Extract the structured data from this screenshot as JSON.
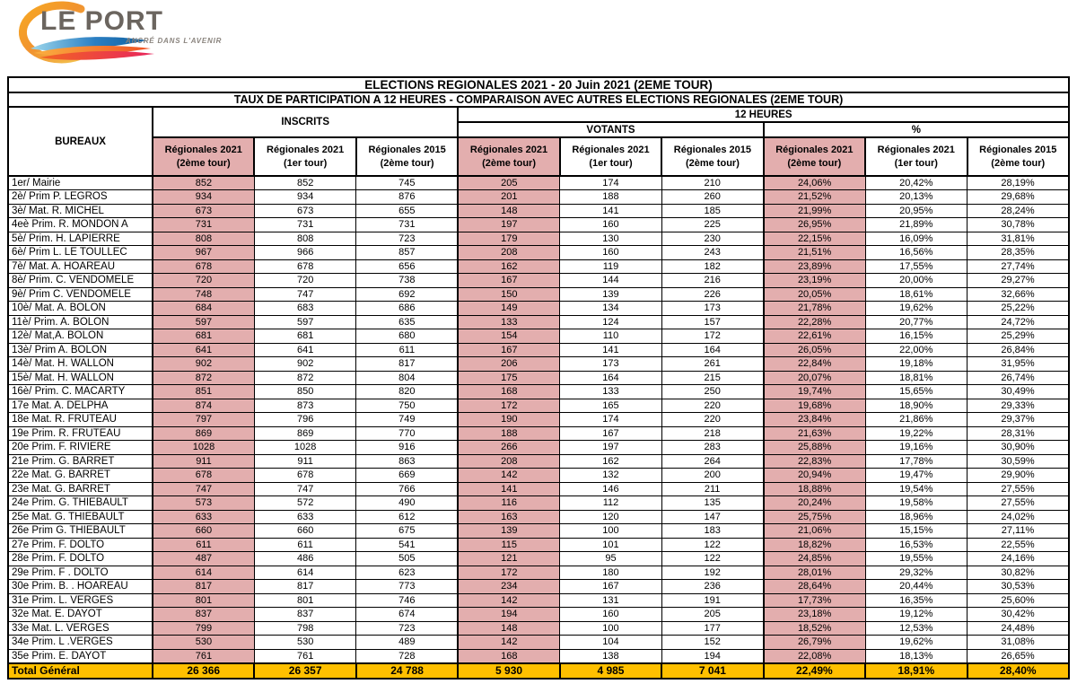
{
  "logo": {
    "name": "LE PORT",
    "tagline": "ANCRÉ DANS L'AVENIR",
    "colors": {
      "arc": "#f1a32f",
      "blue_wave": "#1b75bc",
      "pink_wave": "#e8255d",
      "orange_wave": "#f7941d",
      "text": "#6b655f"
    }
  },
  "table": {
    "title": "ELECTIONS REGIONALES 2021 - 20 Juin 2021 (2EME TOUR)",
    "subtitle": "TAUX DE PARTICIPATION A 12 HEURES - COMPARAISON AVEC AUTRES ELECTIONS REGIONALES  (2EME TOUR)",
    "corner_label": "BUREAUX",
    "groups": {
      "inscrits": "INSCRITS",
      "douze_heures": "12 HEURES",
      "votants": "VOTANTS",
      "pct": "%"
    },
    "colors": {
      "highlight_pink": "#e3aeae",
      "total_orange": "#ffc000"
    },
    "col_headers": [
      {
        "line1": "Régionales 2021",
        "line2": "(2ème tour)",
        "highlight": true
      },
      {
        "line1": "Régionales 2021",
        "line2": "(1er tour)",
        "highlight": false
      },
      {
        "line1": "Régionales 2015",
        "line2": "(2ème tour)",
        "highlight": false
      },
      {
        "line1": "Régionales 2021",
        "line2": "(2ème tour)",
        "highlight": true
      },
      {
        "line1": "Régionales 2021",
        "line2": "(1er tour)",
        "highlight": false
      },
      {
        "line1": "Régionales 2015",
        "line2": "(2ème tour)",
        "highlight": false
      },
      {
        "line1": "Régionales 2021",
        "line2": "(2ème tour)",
        "highlight": true
      },
      {
        "line1": "Régionales 2021",
        "line2": "(1er tour)",
        "highlight": false
      },
      {
        "line1": "Régionales 2015",
        "line2": "(2ème tour)",
        "highlight": false
      }
    ],
    "rows": [
      {
        "bureau": "1er/ Mairie",
        "values": [
          "852",
          "852",
          "745",
          "205",
          "174",
          "210",
          "24,06%",
          "20,42%",
          "28,19%"
        ]
      },
      {
        "bureau": "2è/ Prim P.  LEGROS",
        "values": [
          "934",
          "934",
          "876",
          "201",
          "188",
          "260",
          "21,52%",
          "20,13%",
          "29,68%"
        ]
      },
      {
        "bureau": "3è/ Mat. R. MICHEL",
        "values": [
          "673",
          "673",
          "655",
          "148",
          "141",
          "185",
          "21,99%",
          "20,95%",
          "28,24%"
        ]
      },
      {
        "bureau": "4eè Prim. R. MONDON A",
        "values": [
          "731",
          "731",
          "731",
          "197",
          "160",
          "225",
          "26,95%",
          "21,89%",
          "30,78%"
        ]
      },
      {
        "bureau": "5è/ Prim. H. LAPIERRE",
        "values": [
          "808",
          "808",
          "723",
          "179",
          "130",
          "230",
          "22,15%",
          "16,09%",
          "31,81%"
        ]
      },
      {
        "bureau": "6è/ Prim L. LE TOULLEC",
        "values": [
          "967",
          "966",
          "857",
          "208",
          "160",
          "243",
          "21,51%",
          "16,56%",
          "28,35%"
        ]
      },
      {
        "bureau": "7è/ Mat. A. HOAREAU",
        "values": [
          "678",
          "678",
          "656",
          "162",
          "119",
          "182",
          "23,89%",
          "17,55%",
          "27,74%"
        ]
      },
      {
        "bureau": "8è/ Prim. C. VENDOMELE",
        "values": [
          "720",
          "720",
          "738",
          "167",
          "144",
          "216",
          "23,19%",
          "20,00%",
          "29,27%"
        ]
      },
      {
        "bureau": "9è/ Prim C. VENDOMELE",
        "values": [
          "748",
          "747",
          "692",
          "150",
          "139",
          "226",
          "20,05%",
          "18,61%",
          "32,66%"
        ]
      },
      {
        "bureau": "10è/ Mat. A. BOLON",
        "values": [
          "684",
          "683",
          "686",
          "149",
          "134",
          "173",
          "21,78%",
          "19,62%",
          "25,22%"
        ]
      },
      {
        "bureau": "11è/ Prim. A. BOLON",
        "values": [
          "597",
          "597",
          "635",
          "133",
          "124",
          "157",
          "22,28%",
          "20,77%",
          "24,72%"
        ]
      },
      {
        "bureau": "12è/ Mat,A. BOLON",
        "values": [
          "681",
          "681",
          "680",
          "154",
          "110",
          "172",
          "22,61%",
          "16,15%",
          "25,29%"
        ]
      },
      {
        "bureau": "13è/ Prim A. BOLON",
        "values": [
          "641",
          "641",
          "611",
          "167",
          "141",
          "164",
          "26,05%",
          "22,00%",
          "26,84%"
        ]
      },
      {
        "bureau": "14è/ Mat. H. WALLON",
        "values": [
          "902",
          "902",
          "817",
          "206",
          "173",
          "261",
          "22,84%",
          "19,18%",
          "31,95%"
        ]
      },
      {
        "bureau": "15è/ Mat. H. WALLON",
        "values": [
          "872",
          "872",
          "804",
          "175",
          "164",
          "215",
          "20,07%",
          "18,81%",
          "26,74%"
        ]
      },
      {
        "bureau": "16è/ Prim. C. MACARTY",
        "values": [
          "851",
          "850",
          "820",
          "168",
          "133",
          "250",
          "19,74%",
          "15,65%",
          "30,49%"
        ]
      },
      {
        "bureau": "17e Mat.  A.  DELPHA",
        "values": [
          "874",
          "873",
          "750",
          "172",
          "165",
          "220",
          "19,68%",
          "18,90%",
          "29,33%"
        ]
      },
      {
        "bureau": "18e Mat.  R.  FRUTEAU",
        "values": [
          "797",
          "796",
          "749",
          "190",
          "174",
          "220",
          "23,84%",
          "21,86%",
          "29,37%"
        ]
      },
      {
        "bureau": "19e Prim.  R. FRUTEAU",
        "values": [
          "869",
          "869",
          "770",
          "188",
          "167",
          "218",
          "21,63%",
          "19,22%",
          "28,31%"
        ]
      },
      {
        "bureau": "20e Prim. F.  RIVIERE",
        "values": [
          "1028",
          "1028",
          "916",
          "266",
          "197",
          "283",
          "25,88%",
          "19,16%",
          "30,90%"
        ]
      },
      {
        "bureau": "21e Prim. G.  BARRET",
        "values": [
          "911",
          "911",
          "863",
          "208",
          "162",
          "264",
          "22,83%",
          "17,78%",
          "30,59%"
        ]
      },
      {
        "bureau": "22e Mat.  G.  BARRET",
        "values": [
          "678",
          "678",
          "669",
          "142",
          "132",
          "200",
          "20,94%",
          "19,47%",
          "29,90%"
        ]
      },
      {
        "bureau": "23e Mat. G.  BARRET",
        "values": [
          "747",
          "747",
          "766",
          "141",
          "146",
          "211",
          "18,88%",
          "19,54%",
          "27,55%"
        ]
      },
      {
        "bureau": "24e Prim. G.  THIEBAULT",
        "values": [
          "573",
          "572",
          "490",
          "116",
          "112",
          "135",
          "20,24%",
          "19,58%",
          "27,55%"
        ]
      },
      {
        "bureau": "25e Mat. G.  THIEBAULT",
        "values": [
          "633",
          "633",
          "612",
          "163",
          "120",
          "147",
          "25,75%",
          "18,96%",
          "24,02%"
        ]
      },
      {
        "bureau": "26e Prim G. THIEBAULT",
        "values": [
          "660",
          "660",
          "675",
          "139",
          "100",
          "183",
          "21,06%",
          "15,15%",
          "27,11%"
        ]
      },
      {
        "bureau": "27e Prim.  F.  DOLTO",
        "values": [
          "611",
          "611",
          "541",
          "115",
          "101",
          "122",
          "18,82%",
          "16,53%",
          "22,55%"
        ]
      },
      {
        "bureau": "28e Prim.  F.  DOLTO",
        "values": [
          "487",
          "486",
          "505",
          "121",
          "95",
          "122",
          "24,85%",
          "19,55%",
          "24,16%"
        ]
      },
      {
        "bureau": "29e Prim.  F . DOLTO",
        "values": [
          "614",
          "614",
          "623",
          "172",
          "180",
          "192",
          "28,01%",
          "29,32%",
          "30,82%"
        ]
      },
      {
        "bureau": "30e Prim.  B. . HOAREAU",
        "values": [
          "817",
          "817",
          "773",
          "234",
          "167",
          "236",
          "28,64%",
          "20,44%",
          "30,53%"
        ]
      },
      {
        "bureau": "31e Prim. L.  VERGES",
        "values": [
          "801",
          "801",
          "746",
          "142",
          "131",
          "191",
          "17,73%",
          "16,35%",
          "25,60%"
        ]
      },
      {
        "bureau": "32e Mat. E. DAYOT",
        "values": [
          "837",
          "837",
          "674",
          "194",
          "160",
          "205",
          "23,18%",
          "19,12%",
          "30,42%"
        ]
      },
      {
        "bureau": "33e Mat. L. VERGES",
        "values": [
          "799",
          "798",
          "723",
          "148",
          "100",
          "177",
          "18,52%",
          "12,53%",
          "24,48%"
        ]
      },
      {
        "bureau": "34e Prim. L .VERGES",
        "values": [
          "530",
          "530",
          "489",
          "142",
          "104",
          "152",
          "26,79%",
          "19,62%",
          "31,08%"
        ]
      },
      {
        "bureau": "35e Prim. E. DAYOT",
        "values": [
          "761",
          "761",
          "728",
          "168",
          "138",
          "194",
          "22,08%",
          "18,13%",
          "26,65%"
        ]
      }
    ],
    "total": {
      "label": "Total Général",
      "values": [
        "26 366",
        "26 357",
        "24 788",
        "5 930",
        "4 985",
        "7 041",
        "22,49%",
        "18,91%",
        "28,40%"
      ]
    }
  }
}
